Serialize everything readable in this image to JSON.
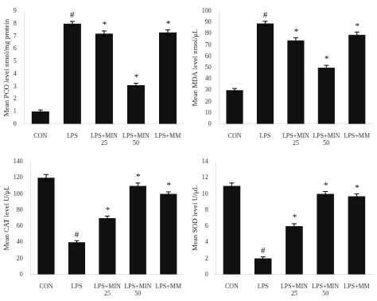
{
  "chart_data": [
    {
      "type": "bar",
      "ylabel": "Mean PCO level nmol/mg protein",
      "categories": [
        "CON",
        "LPS",
        "LPS+MIN\n25",
        "LPS+MIN\n50",
        "LPS+MM"
      ],
      "values": [
        1.0,
        8.0,
        7.2,
        3.1,
        7.3
      ],
      "errors": [
        0.12,
        0.18,
        0.22,
        0.15,
        0.2
      ],
      "annotations": [
        null,
        "#",
        "*",
        "*",
        "*"
      ],
      "color": "#111111",
      "ylim": [
        0,
        9
      ],
      "yticks": [
        0,
        1,
        2,
        3,
        4,
        5,
        6,
        7,
        8,
        9
      ],
      "grid": false
    },
    {
      "type": "bar",
      "ylabel": "Mean MDA level nmol/μL",
      "categories": [
        "CON",
        "LPS",
        "LPS+MIN\n25",
        "LPS+MIN\n50",
        "LPS+MM"
      ],
      "values": [
        30.0,
        89.0,
        74.0,
        50.0,
        79.0
      ],
      "errors": [
        1.5,
        2.0,
        2.5,
        2.0,
        2.5
      ],
      "annotations": [
        null,
        "#",
        "*",
        "*",
        "*"
      ],
      "color": "#111111",
      "ylim": [
        0,
        100
      ],
      "yticks": [
        0,
        10,
        20,
        30,
        40,
        50,
        60,
        70,
        80,
        90,
        100
      ],
      "grid": false
    },
    {
      "type": "bar",
      "ylabel": "Mean CAT level U/μL",
      "categories": [
        "CON",
        "LPS",
        "LPS+MIN\n25",
        "LPS+MIN\n50",
        "LPS+MM"
      ],
      "values": [
        120.0,
        40.0,
        70.0,
        110.0,
        100.0
      ],
      "errors": [
        4.0,
        2.0,
        2.5,
        3.5,
        2.5
      ],
      "annotations": [
        null,
        "#",
        "*",
        "*",
        "*"
      ],
      "color": "#111111",
      "ylim": [
        0,
        140
      ],
      "yticks": [
        0,
        20,
        40,
        60,
        80,
        100,
        120,
        140
      ],
      "grid": false
    },
    {
      "type": "bar",
      "ylabel": "Mean SOD level U/μL",
      "categories": [
        "CON",
        "LPS",
        "LPS+MIN\n25",
        "LPS+MIN\n50",
        "LPS+MM"
      ],
      "values": [
        11.0,
        2.0,
        6.0,
        10.0,
        9.7
      ],
      "errors": [
        0.35,
        0.2,
        0.3,
        0.3,
        0.3
      ],
      "annotations": [
        null,
        "#",
        "*",
        "*",
        "*"
      ],
      "color": "#111111",
      "ylim": [
        0,
        14
      ],
      "yticks": [
        0,
        2,
        4,
        6,
        8,
        10,
        12,
        14
      ],
      "grid": false
    }
  ]
}
